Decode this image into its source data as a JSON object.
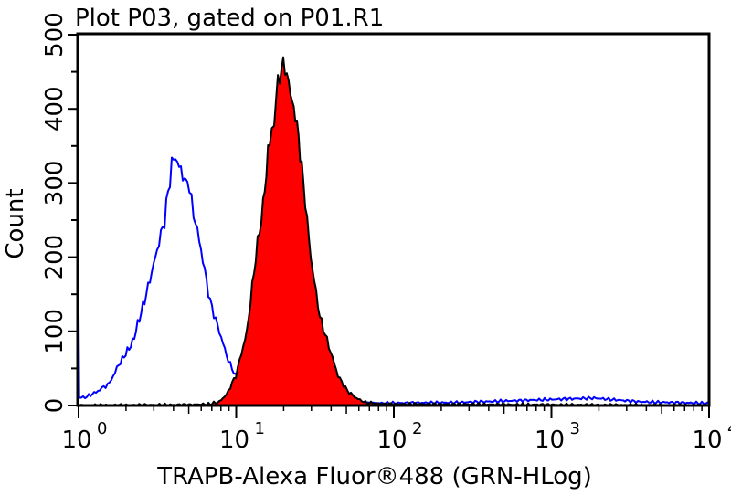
{
  "chart_data": {
    "type": "area",
    "title": "Plot P03, gated on P01.R1",
    "xlabel": "TRAPB-Alexa Fluor®488 (GRN-HLog)",
    "ylabel": "Count",
    "xscale": "log",
    "xlim": [
      1,
      10000
    ],
    "ylim": [
      0,
      500
    ],
    "grid": false,
    "x_ticks": [
      {
        "base": "10",
        "exp": "0",
        "value": 1
      },
      {
        "base": "10",
        "exp": "1",
        "value": 10
      },
      {
        "base": "10",
        "exp": "2",
        "value": 100
      },
      {
        "base": "10",
        "exp": "3",
        "value": 1000
      },
      {
        "base": "10",
        "exp": "4",
        "value": 10000
      }
    ],
    "y_ticks": [
      "0",
      "100",
      "200",
      "300",
      "400",
      "500"
    ],
    "y_tick_values": [
      0,
      100,
      200,
      300,
      400,
      500
    ],
    "series": [
      {
        "color": "#0000ff",
        "fill": "none",
        "x": [
          1.0,
          1.01,
          1.13,
          1.29,
          1.57,
          1.8,
          2.2,
          2.69,
          3.07,
          3.51,
          3.9,
          4.12,
          4.58,
          4.9,
          5.37,
          5.98,
          6.84,
          7.81,
          8.93,
          9.94,
          10.9,
          12.5,
          17.4,
          66,
          251,
          955,
          1862,
          3631,
          10000
        ],
        "y": [
          120,
          10,
          12,
          18,
          30,
          55,
          85,
          150,
          200,
          250,
          325,
          335,
          310,
          300,
          260,
          210,
          140,
          100,
          60,
          40,
          20,
          8,
          3,
          3,
          4,
          8,
          10,
          5,
          3
        ]
      },
      {
        "color": "#000000",
        "fill": "#ff0000",
        "x": [
          1.0,
          5,
          6.84,
          7.81,
          8.69,
          9.94,
          11.7,
          13.3,
          14.8,
          16.3,
          17.4,
          18.9,
          20.4,
          22.1,
          24.3,
          26.7,
          29.7,
          33.9,
          38.7,
          44.3,
          50.6,
          57.8,
          66.1,
          86.3,
          10000
        ],
        "y": [
          0,
          1,
          2,
          5,
          15,
          40,
          100,
          200,
          270,
          360,
          390,
          450,
          460,
          420,
          380,
          300,
          200,
          120,
          80,
          40,
          20,
          10,
          4,
          2,
          0
        ]
      }
    ]
  }
}
